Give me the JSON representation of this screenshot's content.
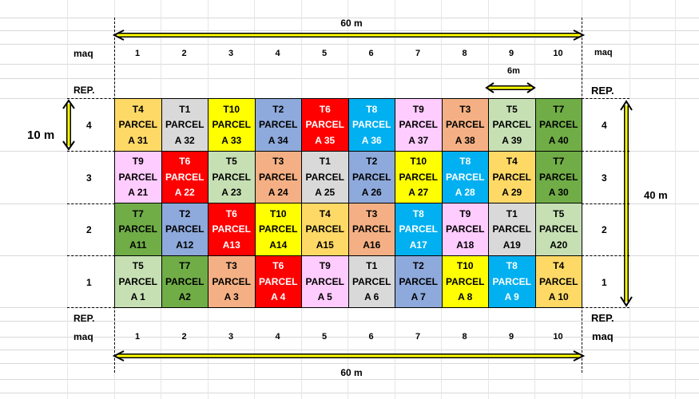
{
  "colors": {
    "T1": "#d9d9d9",
    "T2": "#8ea9db",
    "T3": "#f4b084",
    "T4": "#ffd966",
    "T5": "#c6e0b4",
    "T6": "#ff0000",
    "T7": "#70ad47",
    "T8": "#00b0f0",
    "T9": "#ffccff",
    "T10": "#ffff00",
    "arrow": "#ffff00"
  },
  "labels": {
    "top_width": "60 m",
    "bottom_width": "60 m",
    "maq": "maq",
    "rep": "REP.",
    "spacing": "6m",
    "row_height": "10 m",
    "total_height": "40 m"
  },
  "columns": [
    "1",
    "2",
    "3",
    "4",
    "5",
    "6",
    "7",
    "8",
    "9",
    "10"
  ],
  "rows": [
    {
      "rep": "4",
      "cells": [
        {
          "t": "T4",
          "p": "PARCEL",
          "a": "A 31"
        },
        {
          "t": "T1",
          "p": "PARCEL",
          "a": "A 32"
        },
        {
          "t": "T10",
          "p": "PARCEL",
          "a": "A 33"
        },
        {
          "t": "T2",
          "p": "PARCEL",
          "a": "A 34"
        },
        {
          "t": "T6",
          "p": "PARCEL",
          "a": "A 35"
        },
        {
          "t": "T8",
          "p": "PARCEL",
          "a": "A 36"
        },
        {
          "t": "T9",
          "p": "PARCEL",
          "a": "A 37"
        },
        {
          "t": "T3",
          "p": "PARCEL",
          "a": "A 38"
        },
        {
          "t": "T5",
          "p": "PARCEL",
          "a": "A 39"
        },
        {
          "t": "T7",
          "p": "PARCEL",
          "a": "A 40"
        }
      ]
    },
    {
      "rep": "3",
      "cells": [
        {
          "t": "T9",
          "p": "PARCEL",
          "a": "A 21"
        },
        {
          "t": "T6",
          "p": "PARCEL",
          "a": "A 22"
        },
        {
          "t": "T5",
          "p": "PARCEL",
          "a": "A 23"
        },
        {
          "t": "T3",
          "p": "PARCEL",
          "a": "A 24"
        },
        {
          "t": "T1",
          "p": "PARCEL",
          "a": "A 25"
        },
        {
          "t": "T2",
          "p": "PARCEL",
          "a": "A 26"
        },
        {
          "t": "T10",
          "p": "PARCEL",
          "a": "A 27"
        },
        {
          "t": "T8",
          "p": "PARCEL",
          "a": "A 28"
        },
        {
          "t": "T4",
          "p": "PARCEL",
          "a": "A 29"
        },
        {
          "t": "T7",
          "p": "PARCEL",
          "a": "A 30"
        }
      ]
    },
    {
      "rep": "2",
      "cells": [
        {
          "t": "T7",
          "p": "PARCEL",
          "a": "A11"
        },
        {
          "t": "T2",
          "p": "PARCEL",
          "a": "A12"
        },
        {
          "t": "T6",
          "p": "PARCEL",
          "a": "A13"
        },
        {
          "t": "T10",
          "p": "PARCEL",
          "a": "A14"
        },
        {
          "t": "T4",
          "p": "PARCEL",
          "a": "A15"
        },
        {
          "t": "T3",
          "p": "PARCEL",
          "a": "A16"
        },
        {
          "t": "T8",
          "p": "PARCEL",
          "a": "A17"
        },
        {
          "t": "T9",
          "p": "PARCEL",
          "a": "A18"
        },
        {
          "t": "T1",
          "p": "PARCEL",
          "a": "A19"
        },
        {
          "t": "T5",
          "p": "PARCEL",
          "a": "A20"
        }
      ]
    },
    {
      "rep": "1",
      "cells": [
        {
          "t": "T5",
          "p": "PARCEL",
          "a": "A 1"
        },
        {
          "t": "T7",
          "p": "PARCEL",
          "a": "A2"
        },
        {
          "t": "T3",
          "p": "PARCEL",
          "a": "A 3"
        },
        {
          "t": "T6",
          "p": "PARCEL",
          "a": "A 4"
        },
        {
          "t": "T9",
          "p": "PARCEL",
          "a": "A 5"
        },
        {
          "t": "T1",
          "p": "PARCEL",
          "a": "A 6"
        },
        {
          "t": "T2",
          "p": "PARCEL",
          "a": "A 7"
        },
        {
          "t": "T10",
          "p": "PARCEL",
          "a": "A 8"
        },
        {
          "t": "T8",
          "p": "PARCEL",
          "a": "A 9"
        },
        {
          "t": "T4",
          "p": "PARCEL",
          "a": "A 10"
        }
      ]
    }
  ]
}
